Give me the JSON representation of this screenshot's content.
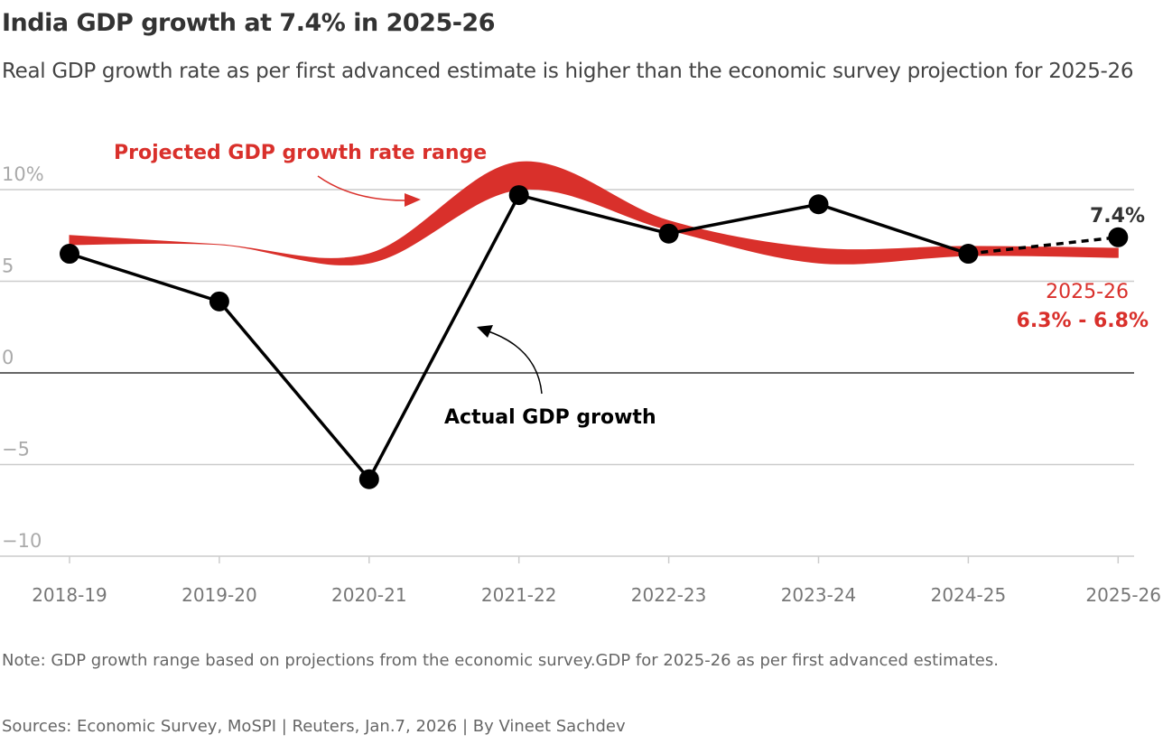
{
  "title": "India GDP growth at 7.4% in 2025-26",
  "subtitle": "Real GDP growth rate as per first advanced estimate is higher than the economic survey projection for 2025-26",
  "note": "Note: GDP growth range based on projections from the economic survey.GDP for 2025-26 as per first advanced estimates.",
  "sources": "Sources: Economic Survey, MoSPI | Reuters, Jan.7, 2026 | By Vineet Sachdev",
  "chart_data": {
    "type": "line",
    "categories": [
      "2018-19",
      "2019-20",
      "2020-21",
      "2021-22",
      "2022-23",
      "2023-24",
      "2024-25",
      "2025-26"
    ],
    "ylim": [
      -10,
      10
    ],
    "yticks": [
      {
        "v": 10,
        "label": "10%"
      },
      {
        "v": 5,
        "label": "5"
      },
      {
        "v": 0,
        "label": "0"
      },
      {
        "v": -5,
        "label": "−5"
      },
      {
        "v": -10,
        "label": "−10"
      }
    ],
    "grid": true,
    "series": [
      {
        "name": "Actual GDP growth",
        "type": "line",
        "color": "#000000",
        "values": [
          6.5,
          3.9,
          -5.8,
          9.7,
          7.6,
          9.2,
          6.5,
          7.4
        ],
        "dashed_last_segment": true
      },
      {
        "name": "Projected GDP growth rate range",
        "type": "range-band",
        "color": "#d9302b",
        "low": [
          7.0,
          7.0,
          6.0,
          10.0,
          7.8,
          6.0,
          6.4,
          6.3
        ],
        "high": [
          7.5,
          7.0,
          6.5,
          11.5,
          8.3,
          6.8,
          6.9,
          6.8
        ]
      }
    ],
    "annotations": {
      "last_value": "7.4%",
      "range_year": "2025-26",
      "range_value": "6.3% - 6.8%",
      "band_label": "Projected GDP growth rate range",
      "line_label": "Actual GDP growth"
    }
  }
}
